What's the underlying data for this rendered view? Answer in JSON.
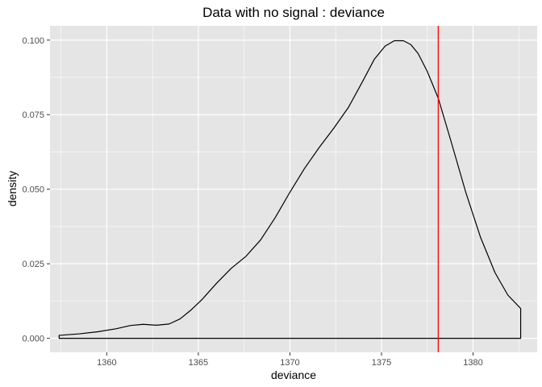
{
  "chart_data": {
    "type": "line",
    "title": "Data with no signal : deviance",
    "xlabel": "deviance",
    "ylabel": "density",
    "xlim": [
      1356.9,
      1383.5
    ],
    "ylim": [
      -0.0047,
      0.1048
    ],
    "x_ticks": [
      1360,
      1365,
      1370,
      1375,
      1380
    ],
    "x_tick_labels": [
      "1360",
      "1365",
      "1370",
      "1375",
      "1380"
    ],
    "y_ticks": [
      0,
      0.025,
      0.05,
      0.075,
      0.1
    ],
    "y_tick_labels": [
      "0.000",
      "0.025",
      "0.050",
      "0.075",
      "0.100"
    ],
    "grid": true,
    "legend": "none",
    "background": "#e5e5e5",
    "grid_color": "#ffffff",
    "line_color": "#000000",
    "vline": {
      "x": 1378.1,
      "color": "#ff0000"
    },
    "series": [
      {
        "x": [
          1357.4,
          1358.5,
          1359.5,
          1360.5,
          1361.3,
          1362.0,
          1362.7,
          1363.4,
          1364.0,
          1364.6,
          1365.2,
          1366.0,
          1366.8,
          1367.6,
          1368.4,
          1369.2,
          1370.0,
          1370.8,
          1371.6,
          1372.4,
          1373.2,
          1374.0,
          1374.6,
          1375.2,
          1375.7,
          1376.2,
          1376.6,
          1377.0,
          1377.5,
          1378.1,
          1378.8,
          1379.6,
          1380.4,
          1381.2,
          1381.9,
          1382.6
        ],
        "y": [
          0.001,
          0.0015,
          0.0022,
          0.0032,
          0.0043,
          0.0047,
          0.0044,
          0.0048,
          0.0065,
          0.0095,
          0.013,
          0.0185,
          0.0235,
          0.0275,
          0.033,
          0.0405,
          0.049,
          0.057,
          0.064,
          0.0705,
          0.0775,
          0.0865,
          0.0935,
          0.098,
          0.0998,
          0.0998,
          0.0985,
          0.0955,
          0.0895,
          0.0805,
          0.066,
          0.049,
          0.034,
          0.022,
          0.0145,
          0.01
        ]
      }
    ]
  }
}
